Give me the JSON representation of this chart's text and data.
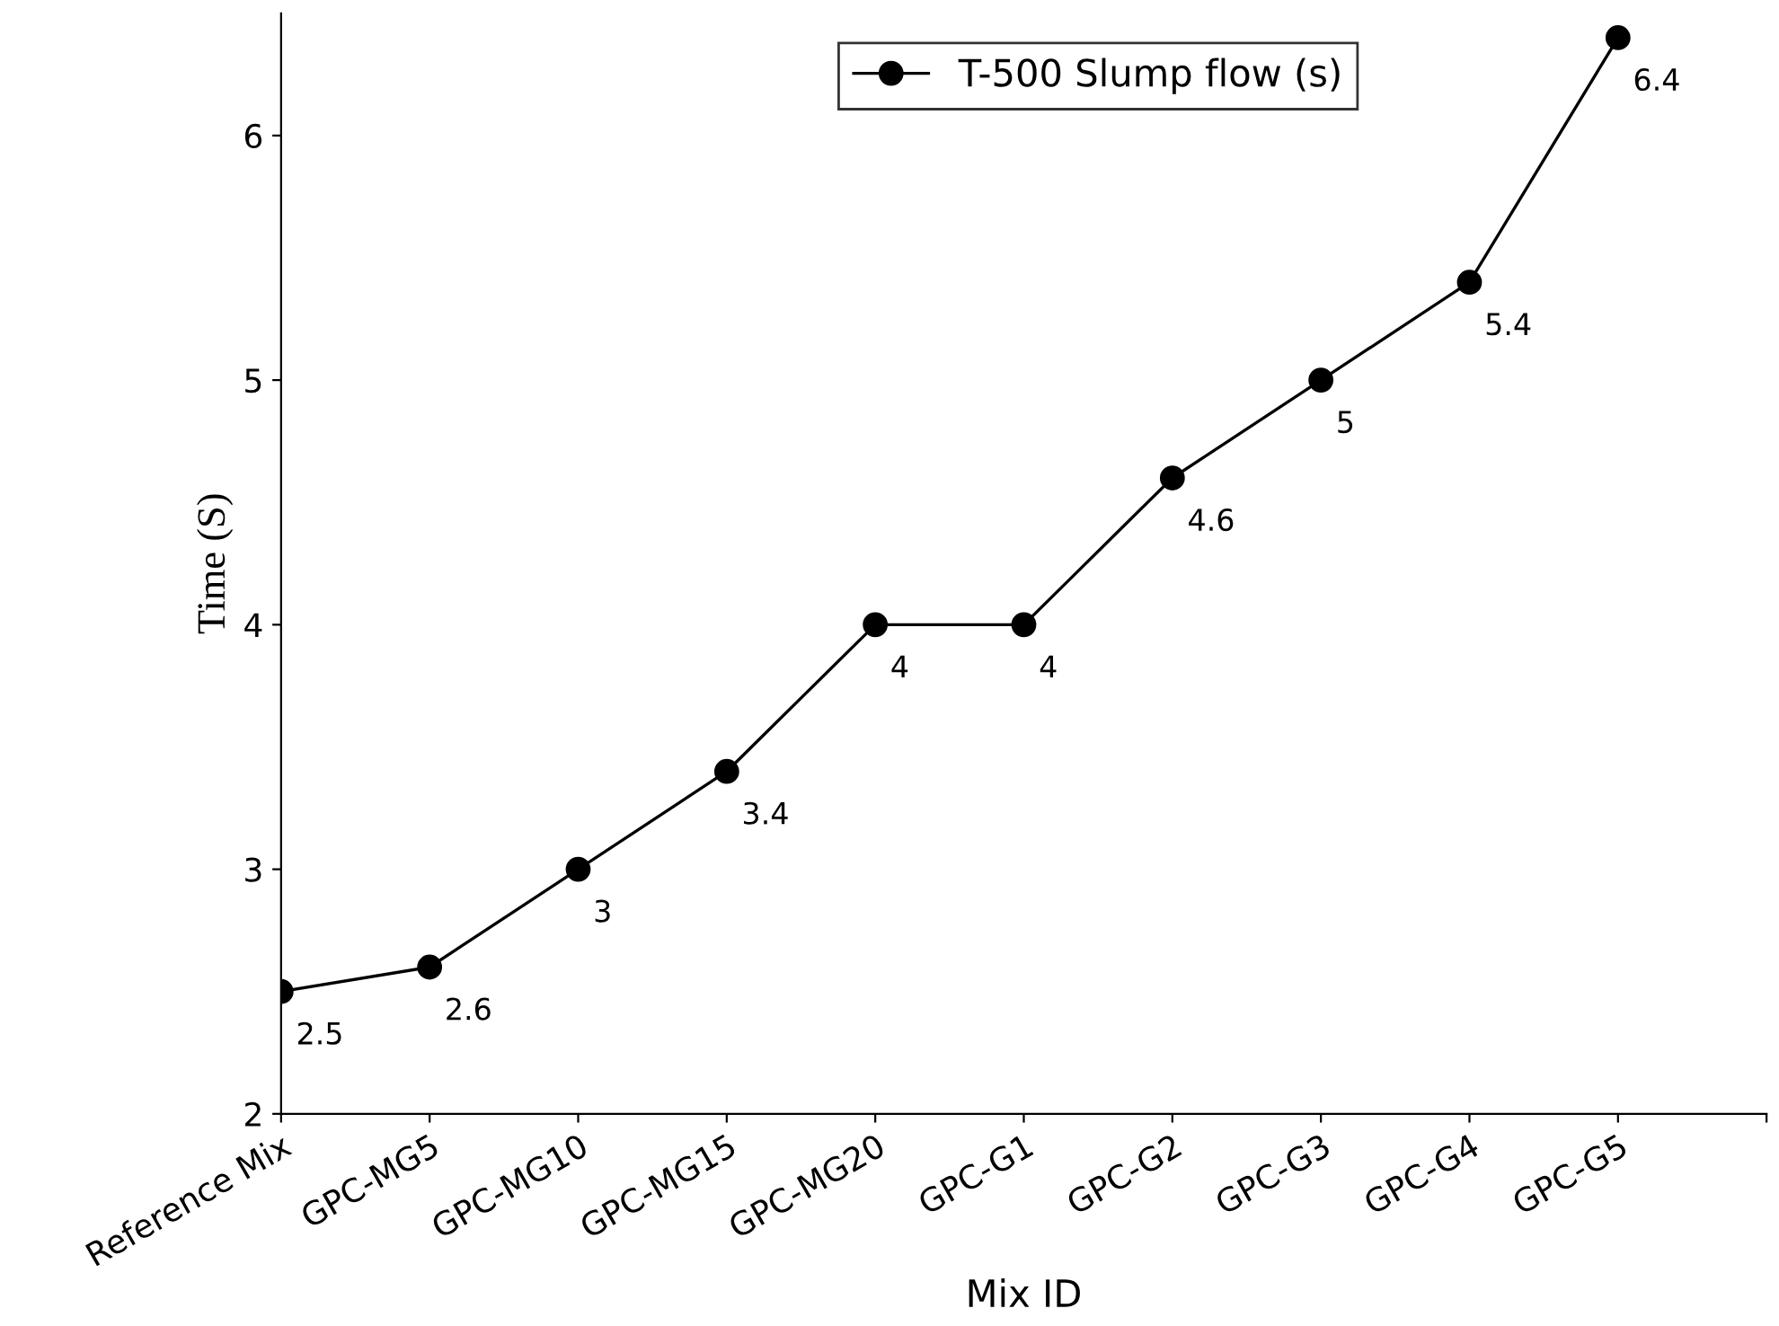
{
  "chart_data": {
    "type": "line",
    "xlabel": "Mix ID",
    "ylabel": "Time (S)",
    "categories": [
      "Reference Mix",
      "GPC-MG5",
      "GPC-MG10",
      "GPC-MG15",
      "GPC-MG20",
      "GPC-G1",
      "GPC-G2",
      "GPC-G3",
      "GPC-G4",
      "GPC-G5",
      null
    ],
    "series": [
      {
        "name": "T-500 Slump flow (s)",
        "color": "#000000",
        "values": [
          2.5,
          2.6,
          3,
          3.4,
          4,
          4,
          4.6,
          5,
          5.4,
          6.4,
          null
        ]
      }
    ],
    "ylim": [
      2,
      6.5
    ],
    "yticks": [
      2,
      3,
      4,
      5,
      6
    ],
    "grid": false,
    "legend": "top",
    "marker": "circle",
    "line_style": "solid",
    "data_labels": true
  }
}
